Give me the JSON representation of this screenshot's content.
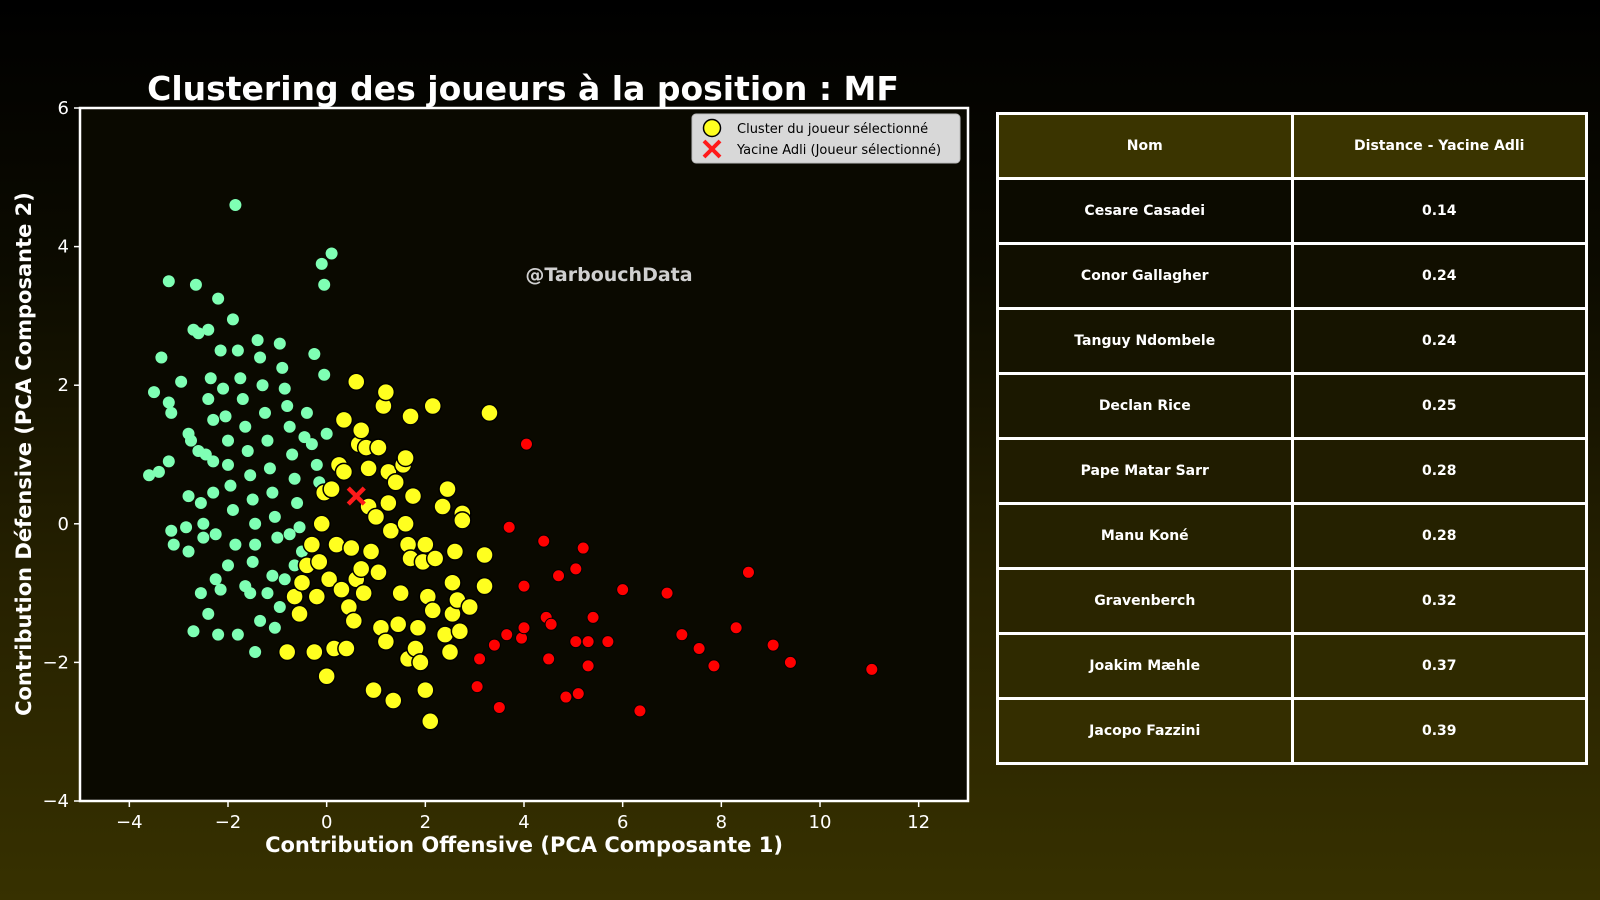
{
  "chart_data": {
    "type": "scatter",
    "title": "Clustering des joueurs à la position : MF",
    "xlabel": "Contribution Offensive (PCA Composante 1)",
    "ylabel": "Contribution Défensive (PCA Composante 2)",
    "xlim": [
      -5,
      13
    ],
    "ylim": [
      -4,
      6
    ],
    "xticks": [
      -4,
      -2,
      0,
      2,
      4,
      6,
      8,
      10,
      12
    ],
    "yticks": [
      -4,
      -2,
      0,
      2,
      4,
      6
    ],
    "grid": false,
    "legend_position": "top-right",
    "watermark": "@TarbouchData",
    "colors": {
      "other_cluster_green": "#7fffb4",
      "selected_cluster_yellow": "#ffff1f",
      "far_cluster_red": "#ff0000",
      "selected_marker": "#ff1a1a",
      "plot_background": "#0a0900"
    },
    "legend": [
      {
        "label": "Cluster du joueur sélectionné",
        "marker": "circle",
        "color": "#ffff1f"
      },
      {
        "label": "Yacine Adli (Joueur sélectionné)",
        "marker": "x",
        "color": "#ff1a1a"
      }
    ],
    "series": [
      {
        "cluster": "green",
        "points": [
          [
            -3.6,
            0.7
          ],
          [
            -3.4,
            0.75
          ],
          [
            -3.5,
            1.9
          ],
          [
            -3.35,
            2.4
          ],
          [
            -3.2,
            3.5
          ],
          [
            -3.2,
            1.75
          ],
          [
            -3.15,
            1.6
          ],
          [
            -3.2,
            0.9
          ],
          [
            -3.15,
            -0.1
          ],
          [
            -3.1,
            -0.3
          ],
          [
            -2.95,
            2.05
          ],
          [
            -2.85,
            -0.05
          ],
          [
            -2.8,
            -0.4
          ],
          [
            -2.8,
            0.4
          ],
          [
            -2.8,
            1.3
          ],
          [
            -2.75,
            1.2
          ],
          [
            -2.7,
            2.8
          ],
          [
            -2.65,
            3.45
          ],
          [
            -2.6,
            2.75
          ],
          [
            -2.6,
            1.05
          ],
          [
            -2.55,
            0.3
          ],
          [
            -2.5,
            0.0
          ],
          [
            -2.5,
            -0.2
          ],
          [
            -2.45,
            1.0
          ],
          [
            -2.4,
            1.8
          ],
          [
            -2.4,
            2.8
          ],
          [
            -2.35,
            2.1
          ],
          [
            -2.3,
            1.5
          ],
          [
            -2.3,
            0.9
          ],
          [
            -2.3,
            0.45
          ],
          [
            -2.25,
            -0.15
          ],
          [
            -2.2,
            3.25
          ],
          [
            -2.15,
            2.5
          ],
          [
            -2.1,
            1.95
          ],
          [
            -2.05,
            1.55
          ],
          [
            -2.0,
            1.2
          ],
          [
            -2.0,
            0.85
          ],
          [
            -1.95,
            0.55
          ],
          [
            -1.9,
            0.2
          ],
          [
            -1.85,
            -0.3
          ],
          [
            -1.9,
            2.95
          ],
          [
            -1.85,
            4.6
          ],
          [
            -1.8,
            2.5
          ],
          [
            -1.75,
            2.1
          ],
          [
            -1.7,
            1.8
          ],
          [
            -1.65,
            1.4
          ],
          [
            -1.6,
            1.05
          ],
          [
            -1.55,
            0.7
          ],
          [
            -1.5,
            0.35
          ],
          [
            -1.45,
            0.0
          ],
          [
            -1.45,
            -0.3
          ],
          [
            -1.4,
            2.65
          ],
          [
            -1.35,
            2.4
          ],
          [
            -1.3,
            2.0
          ],
          [
            -1.25,
            1.6
          ],
          [
            -1.2,
            1.2
          ],
          [
            -1.15,
            0.8
          ],
          [
            -1.1,
            0.45
          ],
          [
            -1.05,
            0.1
          ],
          [
            -1.0,
            -0.2
          ],
          [
            -0.95,
            2.6
          ],
          [
            -0.9,
            2.25
          ],
          [
            -0.85,
            1.95
          ],
          [
            -0.8,
            1.7
          ],
          [
            -0.75,
            1.4
          ],
          [
            -0.7,
            1.0
          ],
          [
            -0.65,
            0.65
          ],
          [
            -0.6,
            0.3
          ],
          [
            -0.55,
            -0.05
          ],
          [
            -0.5,
            -0.4
          ],
          [
            -0.45,
            1.25
          ],
          [
            -0.4,
            1.6
          ],
          [
            -0.3,
            1.15
          ],
          [
            -0.25,
            2.45
          ],
          [
            -0.2,
            0.85
          ],
          [
            -0.15,
            0.6
          ],
          [
            -0.1,
            3.75
          ],
          [
            -0.05,
            3.45
          ],
          [
            0.1,
            3.9
          ],
          [
            -0.05,
            2.15
          ],
          [
            0.0,
            1.3
          ],
          [
            -2.7,
            -1.55
          ],
          [
            -2.55,
            -1.0
          ],
          [
            -2.4,
            -1.3
          ],
          [
            -2.25,
            -0.8
          ],
          [
            -2.2,
            -1.6
          ],
          [
            -2.15,
            -0.95
          ],
          [
            -2.0,
            -0.6
          ],
          [
            -1.8,
            -1.6
          ],
          [
            -1.65,
            -0.9
          ],
          [
            -1.55,
            -1.0
          ],
          [
            -1.5,
            -0.55
          ],
          [
            -1.45,
            -1.85
          ],
          [
            -1.35,
            -1.4
          ],
          [
            -1.2,
            -1.0
          ],
          [
            -1.1,
            -0.75
          ],
          [
            -1.05,
            -1.5
          ],
          [
            -0.95,
            -1.2
          ],
          [
            -0.85,
            -0.8
          ],
          [
            -0.75,
            -0.15
          ],
          [
            -0.65,
            -0.6
          ]
        ]
      },
      {
        "cluster": "yellow",
        "points": [
          [
            -0.8,
            -1.85
          ],
          [
            -0.65,
            -1.05
          ],
          [
            -0.55,
            -1.3
          ],
          [
            -0.5,
            -0.85
          ],
          [
            -0.4,
            -0.6
          ],
          [
            -0.3,
            -0.3
          ],
          [
            -0.25,
            -1.85
          ],
          [
            -0.2,
            -1.05
          ],
          [
            -0.15,
            -0.55
          ],
          [
            -0.1,
            0.0
          ],
          [
            -0.05,
            0.45
          ],
          [
            0.0,
            -2.2
          ],
          [
            0.05,
            -0.8
          ],
          [
            0.1,
            0.5
          ],
          [
            0.15,
            -1.8
          ],
          [
            0.2,
            -0.3
          ],
          [
            0.25,
            0.85
          ],
          [
            0.3,
            -0.95
          ],
          [
            0.35,
            0.75
          ],
          [
            0.35,
            1.5
          ],
          [
            0.4,
            -1.8
          ],
          [
            0.45,
            -1.2
          ],
          [
            0.5,
            -0.35
          ],
          [
            0.55,
            -1.4
          ],
          [
            0.6,
            -0.8
          ],
          [
            0.6,
            2.05
          ],
          [
            0.65,
            1.15
          ],
          [
            0.7,
            1.35
          ],
          [
            0.7,
            -0.65
          ],
          [
            0.75,
            -1.0
          ],
          [
            0.8,
            1.1
          ],
          [
            0.85,
            0.8
          ],
          [
            0.85,
            0.25
          ],
          [
            0.9,
            -0.4
          ],
          [
            0.95,
            -2.4
          ],
          [
            1.0,
            0.1
          ],
          [
            1.05,
            1.1
          ],
          [
            1.05,
            -0.7
          ],
          [
            1.1,
            -1.5
          ],
          [
            1.15,
            1.7
          ],
          [
            1.2,
            1.9
          ],
          [
            1.2,
            -1.7
          ],
          [
            1.25,
            0.75
          ],
          [
            1.25,
            0.3
          ],
          [
            1.3,
            -0.1
          ],
          [
            1.35,
            -2.55
          ],
          [
            1.4,
            0.6
          ],
          [
            1.45,
            -1.45
          ],
          [
            1.5,
            -1.0
          ],
          [
            1.55,
            0.85
          ],
          [
            1.6,
            0.95
          ],
          [
            1.6,
            0.0
          ],
          [
            1.65,
            -1.95
          ],
          [
            1.65,
            -0.3
          ],
          [
            1.7,
            1.55
          ],
          [
            1.7,
            -0.5
          ],
          [
            1.75,
            0.4
          ],
          [
            1.8,
            -1.8
          ],
          [
            1.85,
            -1.5
          ],
          [
            1.9,
            -2.0
          ],
          [
            1.95,
            -0.55
          ],
          [
            2.0,
            -2.4
          ],
          [
            2.0,
            -0.3
          ],
          [
            2.05,
            -1.05
          ],
          [
            2.1,
            -2.85
          ],
          [
            2.15,
            1.7
          ],
          [
            2.15,
            -1.25
          ],
          [
            2.2,
            -0.5
          ],
          [
            2.35,
            0.25
          ],
          [
            2.4,
            -1.6
          ],
          [
            2.45,
            0.5
          ],
          [
            2.5,
            -1.85
          ],
          [
            2.55,
            -0.85
          ],
          [
            2.55,
            -1.3
          ],
          [
            2.6,
            -0.4
          ],
          [
            2.65,
            -1.1
          ],
          [
            2.7,
            -1.55
          ],
          [
            2.75,
            0.15
          ],
          [
            2.75,
            0.05
          ],
          [
            2.9,
            -1.2
          ],
          [
            3.2,
            -0.45
          ],
          [
            3.2,
            -0.9
          ],
          [
            3.3,
            1.6
          ]
        ]
      },
      {
        "cluster": "red",
        "points": [
          [
            3.05,
            -2.35
          ],
          [
            3.1,
            -1.95
          ],
          [
            3.4,
            -1.75
          ],
          [
            3.5,
            -2.65
          ],
          [
            3.65,
            -1.6
          ],
          [
            3.7,
            -0.05
          ],
          [
            3.95,
            -1.65
          ],
          [
            4.0,
            -1.5
          ],
          [
            4.0,
            -0.9
          ],
          [
            4.05,
            1.15
          ],
          [
            4.4,
            -0.25
          ],
          [
            4.45,
            -1.35
          ],
          [
            4.5,
            -1.95
          ],
          [
            4.55,
            -1.45
          ],
          [
            4.7,
            -0.75
          ],
          [
            4.85,
            -2.5
          ],
          [
            5.05,
            -0.65
          ],
          [
            5.05,
            -1.7
          ],
          [
            5.1,
            -2.45
          ],
          [
            5.2,
            -0.35
          ],
          [
            5.3,
            -1.7
          ],
          [
            5.3,
            -2.05
          ],
          [
            5.4,
            -1.35
          ],
          [
            5.7,
            -1.7
          ],
          [
            6.0,
            -0.95
          ],
          [
            6.35,
            -2.7
          ],
          [
            6.9,
            -1.0
          ],
          [
            7.2,
            -1.6
          ],
          [
            7.55,
            -1.8
          ],
          [
            7.85,
            -2.05
          ],
          [
            8.3,
            -1.5
          ],
          [
            8.55,
            -0.7
          ],
          [
            9.05,
            -1.75
          ],
          [
            9.4,
            -2.0
          ],
          [
            11.05,
            -2.1
          ]
        ]
      }
    ],
    "selected_player": {
      "name": "Yacine Adli",
      "x": 0.6,
      "y": 0.4
    }
  },
  "table": {
    "headers": [
      "Nom",
      "Distance - Yacine Adli"
    ],
    "rows": [
      [
        "Cesare Casadei",
        "0.14"
      ],
      [
        "Conor Gallagher",
        "0.24"
      ],
      [
        "Tanguy Ndombele",
        "0.24"
      ],
      [
        "Declan Rice",
        "0.25"
      ],
      [
        "Pape Matar Sarr",
        "0.28"
      ],
      [
        "Manu Koné",
        "0.28"
      ],
      [
        "Gravenberch",
        "0.32"
      ],
      [
        "Joakim Mæhle",
        "0.37"
      ],
      [
        "Jacopo Fazzini",
        "0.39"
      ]
    ],
    "row_colors": [
      "#0c0b00",
      "#110f00",
      "#161400",
      "#1b1800",
      "#201c00",
      "#252100",
      "#2a2500",
      "#2f2a00",
      "#342e00"
    ]
  }
}
